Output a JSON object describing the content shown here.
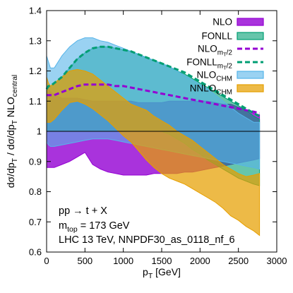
{
  "chart_data": {
    "type": "area",
    "xlabel": "p",
    "xlabel_sub": "T",
    "xlabel_unit": " [GeV]",
    "ylabel": "dσ/dp",
    "ylabel_parts": [
      {
        "t": "dσ/dp",
        "sub": false
      },
      {
        "t": "T",
        "sub": true
      },
      {
        "t": " / dσ/dp",
        "sub": false
      },
      {
        "t": "T",
        "sub": true
      },
      {
        "t": " NLO",
        "sub": false
      },
      {
        "t": "central",
        "sub": true
      }
    ],
    "xlim": [
      0,
      3000
    ],
    "ylim": [
      0.6,
      1.4
    ],
    "x_ticks": [
      0,
      500,
      1000,
      1500,
      2000,
      2500,
      3000
    ],
    "y_ticks": [
      0.6,
      0.7,
      0.8,
      0.9,
      1.0,
      1.1,
      1.2,
      1.3,
      1.4
    ],
    "y_tick_labels": [
      "0.6",
      "0.7",
      "0.8",
      "0.9",
      "1",
      "1.1",
      "1.2",
      "1.3",
      "1.4"
    ],
    "reference_line": 1.0,
    "grid": false,
    "legend_position": "top-right",
    "x": [
      0,
      25,
      50,
      100,
      200,
      300,
      400,
      500,
      600,
      700,
      800,
      900,
      1000,
      1100,
      1200,
      1300,
      1400,
      1500,
      1600,
      1700,
      1800,
      1900,
      2000,
      2100,
      2200,
      2300,
      2400,
      2500,
      2600,
      2700,
      2775
    ],
    "series": [
      {
        "name": "NLO",
        "name_sub": "",
        "kind": "band",
        "color": "#9400d3",
        "fill_opacity": 0.8,
        "upper": [
          1.15,
          1.14,
          1.13,
          1.12,
          1.11,
          1.11,
          1.11,
          1.105,
          1.1,
          1.1,
          1.1,
          1.1,
          1.1,
          1.1,
          1.095,
          1.095,
          1.095,
          1.095,
          1.1,
          1.1,
          1.1,
          1.1,
          1.1,
          1.1,
          1.095,
          1.09,
          1.09,
          1.08,
          1.07,
          1.06,
          1.055
        ],
        "lower": [
          0.88,
          0.88,
          0.88,
          0.88,
          0.89,
          0.9,
          0.915,
          0.93,
          0.89,
          0.875,
          0.865,
          0.86,
          0.855,
          0.855,
          0.855,
          0.855,
          0.86,
          0.86,
          0.86,
          0.86,
          0.865,
          0.865,
          0.87,
          0.875,
          0.88,
          0.885,
          0.89,
          0.895,
          0.9,
          0.905,
          0.91
        ]
      },
      {
        "name": "FONLL",
        "name_sub": "",
        "kind": "band",
        "color": "#009e73",
        "fill_opacity": 0.6,
        "upper": [
          1.14,
          1.15,
          1.15,
          1.16,
          1.18,
          1.21,
          1.24,
          1.26,
          1.275,
          1.28,
          1.28,
          1.275,
          1.27,
          1.265,
          1.255,
          1.245,
          1.235,
          1.225,
          1.215,
          1.2,
          1.19,
          1.175,
          1.16,
          1.145,
          1.13,
          1.115,
          1.1,
          1.085,
          1.07,
          1.05,
          1.04
        ],
        "lower": [
          1.0,
          1.0,
          1.0,
          1.0,
          1.0,
          1.0,
          1.0,
          1.0,
          1.0,
          1.0,
          1.0,
          1.0,
          1.0,
          1.0,
          1.0,
          1.0,
          1.0,
          1.0,
          0.99,
          0.975,
          0.96,
          0.94,
          0.925,
          0.905,
          0.89,
          0.875,
          0.86,
          0.845,
          0.835,
          0.825,
          0.82
        ]
      },
      {
        "name": "NLO",
        "name_sub": "m_T/2",
        "kind": "dashed",
        "color": "#9400d3",
        "values": [
          1.12,
          1.12,
          1.12,
          1.12,
          1.13,
          1.14,
          1.15,
          1.155,
          1.155,
          1.155,
          1.155,
          1.15,
          1.15,
          1.145,
          1.14,
          1.135,
          1.13,
          1.125,
          1.12,
          1.115,
          1.11,
          1.105,
          1.1,
          1.095,
          1.09,
          1.085,
          1.08,
          1.075,
          1.07,
          1.065,
          1.06
        ]
      },
      {
        "name": "FONLL",
        "name_sub": "m_T/2",
        "kind": "dashed",
        "color": "#009e73",
        "values": [
          1.14,
          1.15,
          1.15,
          1.16,
          1.18,
          1.21,
          1.24,
          1.26,
          1.275,
          1.28,
          1.28,
          1.275,
          1.27,
          1.265,
          1.255,
          1.245,
          1.235,
          1.225,
          1.215,
          1.205,
          1.195,
          1.18,
          1.165,
          1.15,
          1.135,
          1.12,
          1.105,
          1.09,
          1.075,
          1.06,
          1.05
        ]
      },
      {
        "name": "NLO",
        "name_sub": "CHM",
        "kind": "band",
        "color": "#56b4e9",
        "fill_opacity": 0.6,
        "upper": [
          1.25,
          1.23,
          1.21,
          1.21,
          1.25,
          1.28,
          1.3,
          1.31,
          1.31,
          1.3,
          1.295,
          1.285,
          1.275,
          1.265,
          1.255,
          1.245,
          1.235,
          1.225,
          1.215,
          1.2,
          1.185,
          1.17,
          1.155,
          1.14,
          1.12,
          1.1,
          1.08,
          1.06,
          1.045,
          1.03,
          1.03
        ],
        "lower": [
          0.965,
          0.955,
          0.95,
          0.95,
          0.955,
          0.96,
          0.965,
          0.97,
          0.975,
          0.975,
          0.975,
          0.97,
          0.965,
          0.96,
          0.955,
          0.95,
          0.945,
          0.94,
          0.935,
          0.93,
          0.925,
          0.92,
          0.915,
          0.91,
          0.905,
          0.9,
          0.895,
          0.89,
          0.885,
          0.88,
          0.875
        ]
      },
      {
        "name": "NNLO",
        "name_sub": "CHM",
        "kind": "band",
        "color": "#e69f00",
        "fill_opacity": 0.72,
        "upper": [
          1.18,
          1.16,
          1.15,
          1.16,
          1.18,
          1.2,
          1.205,
          1.2,
          1.19,
          1.17,
          1.15,
          1.13,
          1.11,
          1.09,
          1.08,
          1.07,
          1.05,
          1.035,
          1.02,
          1.0,
          0.985,
          0.97,
          0.95,
          0.93,
          0.91,
          0.89,
          0.875,
          0.86,
          0.85,
          0.855,
          0.86
        ],
        "lower": [
          1.03,
          1.03,
          1.03,
          1.04,
          1.07,
          1.095,
          1.1,
          1.09,
          1.075,
          1.055,
          1.035,
          1.01,
          0.985,
          0.965,
          0.935,
          0.905,
          0.88,
          0.86,
          0.845,
          0.835,
          0.825,
          0.81,
          0.795,
          0.78,
          0.765,
          0.745,
          0.72,
          0.705,
          0.685,
          0.67,
          0.655
        ]
      }
    ],
    "annotations": [
      {
        "parts": [
          {
            "t": "pp → t + X",
            "sub": false
          }
        ]
      },
      {
        "parts": [
          {
            "t": "m",
            "sub": false
          },
          {
            "t": "top",
            "sub": true
          },
          {
            "t": " = 173 GeV",
            "sub": false
          }
        ]
      },
      {
        "parts": [
          {
            "t": "LHC 13 TeV, NNPDF30_as_0118_nf_6",
            "sub": false
          }
        ]
      }
    ]
  }
}
